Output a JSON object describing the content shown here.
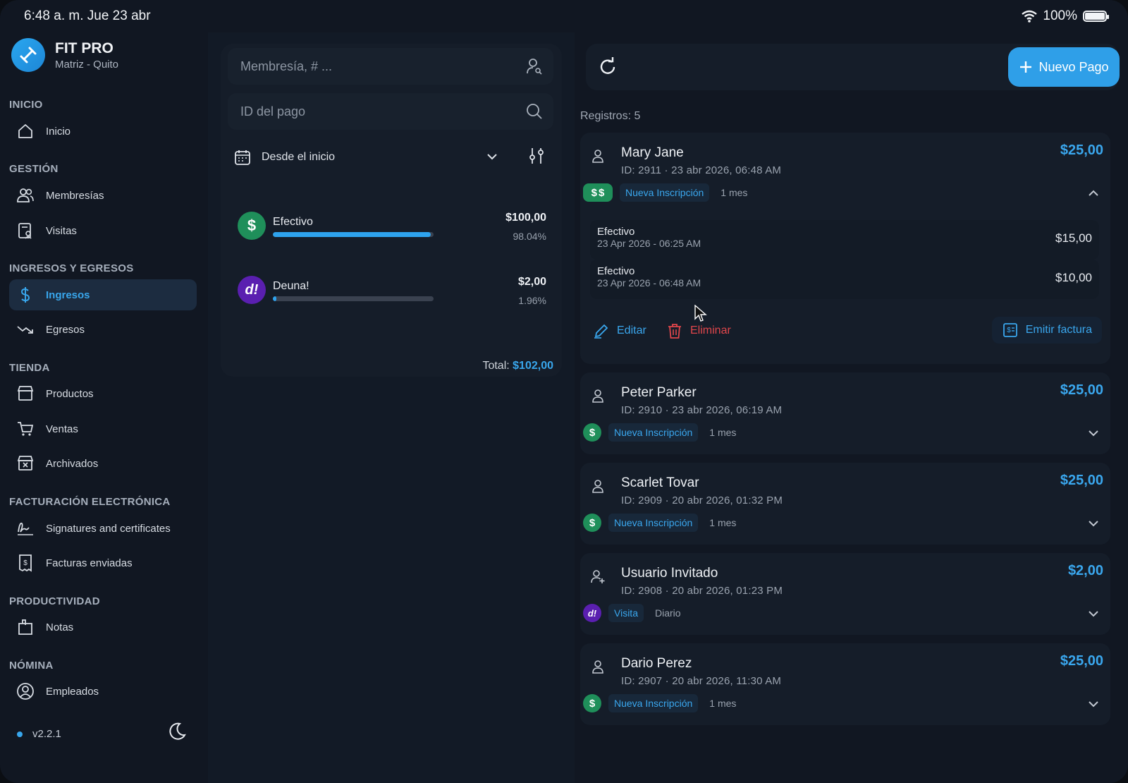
{
  "status_bar": {
    "time": "6:48 a. m.   Jue 23 abr",
    "battery": "100%",
    "battery_level": 1.0
  },
  "brand": {
    "title": "FIT PRO",
    "subtitle": "Matriz - Quito"
  },
  "sidebar": {
    "sections": [
      {
        "label": "INICIO",
        "items": [
          {
            "label": "Inicio",
            "icon": "home-icon"
          }
        ]
      },
      {
        "label": "GESTIÓN",
        "items": [
          {
            "label": "Membresías",
            "icon": "users-icon"
          },
          {
            "label": "Visitas",
            "icon": "visits-icon"
          }
        ]
      },
      {
        "label": "INGRESOS Y EGRESOS",
        "items": [
          {
            "label": "Ingresos",
            "icon": "dollar-icon",
            "active": true
          },
          {
            "label": "Egresos",
            "icon": "trend-down-icon"
          }
        ]
      },
      {
        "label": "TIENDA",
        "items": [
          {
            "label": "Productos",
            "icon": "store-icon"
          },
          {
            "label": "Ventas",
            "icon": "cart-icon"
          },
          {
            "label": "Archivados",
            "icon": "archive-store-icon"
          }
        ]
      },
      {
        "label": "FACTURACIÓN ELECTRÓNICA",
        "items": [
          {
            "label": "Signatures and certificates",
            "icon": "signature-icon"
          },
          {
            "label": "Facturas enviadas",
            "icon": "invoice-icon"
          }
        ]
      },
      {
        "label": "PRODUCTIVIDAD",
        "items": [
          {
            "label": "Notas",
            "icon": "notes-icon"
          }
        ]
      },
      {
        "label": "NÓMINA",
        "items": [
          {
            "label": "Empleados",
            "icon": "employee-icon"
          }
        ]
      }
    ],
    "version": "v2.2.1"
  },
  "filters": {
    "membership_placeholder": "Membresía, # ...",
    "payment_id_placeholder": "ID del pago",
    "date_range": "Desde el inicio"
  },
  "methods": [
    {
      "name": "Efectivo",
      "amount": "$100,00",
      "percent": "98.04%",
      "fraction": 0.9804,
      "color": "#1f8f5a",
      "icon_text": "$"
    },
    {
      "name": "Deuna!",
      "amount": "$2,00",
      "percent": "1.96%",
      "fraction": 0.0196,
      "color": "#5a1fb0",
      "icon_text": "d!"
    }
  ],
  "total": {
    "label": "Total:",
    "value": "$102,00"
  },
  "toolbar": {
    "new_payment_label": "Nuevo Pago"
  },
  "records_count": "Registros: 5",
  "payments": [
    {
      "name": "Mary Jane",
      "meta": "ID: 2911  ·  23 abr 2026, 06:48 AM",
      "amount": "$25,00",
      "type": "Nueva Inscripción",
      "duration": "1 mes",
      "expanded": true,
      "sub_payments": [
        {
          "method": "Efectivo",
          "date": "23 Apr 2026 - 06:25 AM",
          "amount": "$15,00"
        },
        {
          "method": "Efectivo",
          "date": "23 Apr 2026 - 06:48 AM",
          "amount": "$10,00"
        }
      ],
      "actions": {
        "edit": "Editar",
        "delete": "Eliminar",
        "invoice": "Emitir factura"
      }
    },
    {
      "name": "Peter Parker",
      "meta": "ID: 2910  ·  23 abr 2026, 06:19 AM",
      "amount": "$25,00",
      "type": "Nueva Inscripción",
      "duration": "1 mes"
    },
    {
      "name": "Scarlet Tovar",
      "meta": "ID: 2909  ·  20 abr 2026, 01:32 PM",
      "amount": "$25,00",
      "type": "Nueva Inscripción",
      "duration": "1 mes"
    },
    {
      "name": "Usuario Invitado",
      "meta": "ID: 2908  ·  20 abr 2026, 01:23 PM",
      "amount": "$2,00",
      "type": "Visita",
      "duration": "Diario"
    },
    {
      "name": "Dario Perez",
      "meta": "ID: 2907  ·  20 abr 2026, 11:30 AM",
      "amount": "$25,00",
      "type": "Nueva Inscripción",
      "duration": "1 mes"
    }
  ],
  "colors": {
    "accent": "#2f9fe8",
    "danger": "#e0464b",
    "cash_green": "#1f8f5a",
    "deuna_purple": "#5a1fb0"
  }
}
